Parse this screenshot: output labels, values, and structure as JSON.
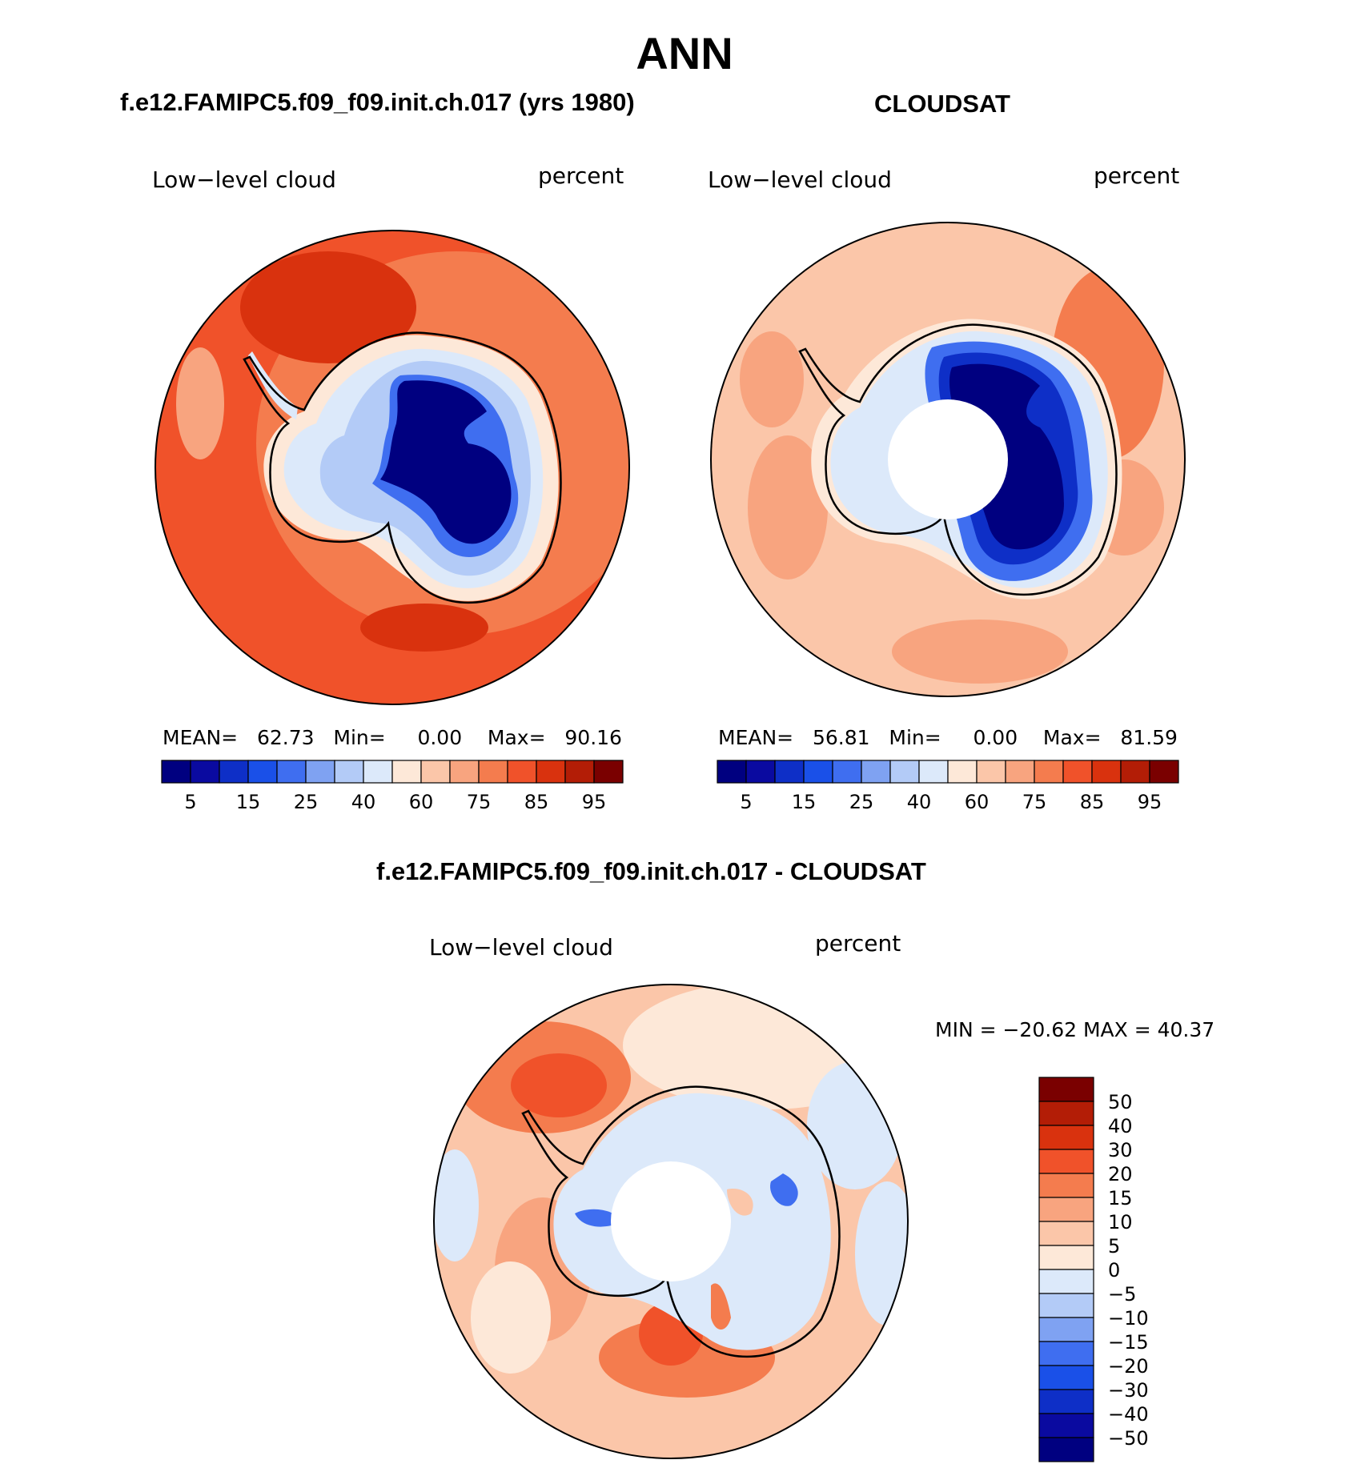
{
  "figure": {
    "title": "ANN"
  },
  "panels": [
    {
      "id": "model",
      "subtitle": "f.e12.FAMIPC5.f09_f09.init.ch.017 (yrs 1980)",
      "variable": "Low−level cloud",
      "units": "percent",
      "stats": {
        "mean_label": "MEAN=",
        "mean": "62.73",
        "min_label": "Min=",
        "min": "0.00",
        "max_label": "Max=",
        "max": "90.16"
      }
    },
    {
      "id": "obs",
      "subtitle": "CLOUDSAT",
      "variable": "Low−level cloud",
      "units": "percent",
      "stats": {
        "mean_label": "MEAN=",
        "mean": "56.81",
        "min_label": "Min=",
        "min": "0.00",
        "max_label": "Max=",
        "max": "81.59"
      }
    },
    {
      "id": "diff",
      "subtitle": "f.e12.FAMIPC5.f09_f09.init.ch.017 - CLOUDSAT",
      "variable": "Low−level cloud",
      "units": "percent",
      "stats_text": "MIN = −20.62 MAX =   40.37"
    }
  ],
  "abs_colorbar": {
    "colors": [
      "#000080",
      "#0a0aa0",
      "#0e2fc7",
      "#1a50e8",
      "#3f6ef0",
      "#7fa2f2",
      "#b3cbf7",
      "#dce9fa",
      "#fde8d8",
      "#fbc6a9",
      "#f8a47f",
      "#f47c4e",
      "#f0522a",
      "#d9320e",
      "#b31d06",
      "#7a0000"
    ],
    "tick_labels": [
      "5",
      "15",
      "25",
      "40",
      "60",
      "75",
      "85",
      "95"
    ]
  },
  "diff_colorbar": {
    "colors": [
      "#7a0000",
      "#b31d06",
      "#d9320e",
      "#f0522a",
      "#f47c4e",
      "#f8a47f",
      "#fbc6a9",
      "#fde8d8",
      "#dce9fa",
      "#b3cbf7",
      "#7fa2f2",
      "#3f6ef0",
      "#1a50e8",
      "#0e2fc7",
      "#0a0aa0",
      "#000080"
    ],
    "tick_labels": [
      "50",
      "40",
      "30",
      "20",
      "15",
      "10",
      "5",
      "0",
      "−5",
      "−10",
      "−15",
      "−20",
      "−30",
      "−40",
      "−50"
    ]
  }
}
